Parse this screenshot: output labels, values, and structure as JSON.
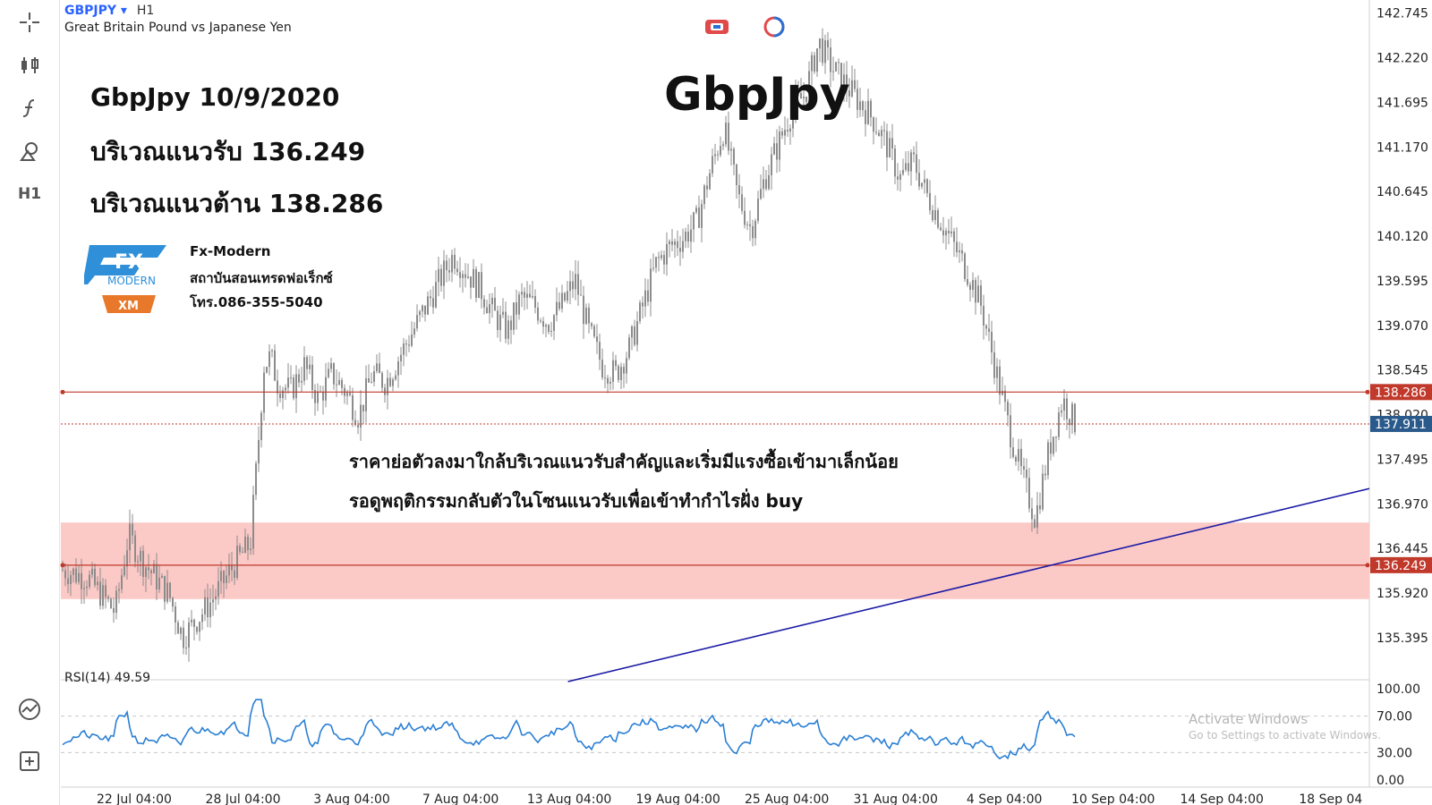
{
  "header": {
    "symbol": "GBPJPY",
    "symbol_caret": "▾",
    "timeframe": "H1",
    "description": "Great Britain Pound vs Japanese Yen"
  },
  "toolbar": {
    "items": [
      "crosshair-icon",
      "candles-icon",
      "function-icon",
      "shapes-icon",
      "H1"
    ],
    "bottom": [
      "indicator-icon",
      "add-icon"
    ]
  },
  "overlay": {
    "big_title": "GbpJpy",
    "line1": "GbpJpy 10/9/2020",
    "line2": "บริเวณแนวรับ 136.249",
    "line3": "บริเวณแนวต้าน 138.286",
    "brand_name": "Fx-Modern",
    "brand_thai": "สถาบันสอนเทรดฟอเร็กซ์",
    "brand_phone": "โทร.086-355-5040",
    "logo_text": "FX",
    "logo_sub": "MODERN",
    "logo_partner": "XM",
    "note1": "ราคาย่อตัวลงมาใกล้บริเวณแนวรับสำคัญและเริ่มมีแรงซื้อเข้ามาเล็กน้อย",
    "note2": "รอดูพฤติกรรมกลับตัวในโซนแนวรับเพื่อเข้าทำกำไรฝั่ง buy"
  },
  "rsi": {
    "label": "RSI(14) 49.59",
    "levels": [
      "100.00",
      "70.00",
      "30.00",
      "0.00"
    ]
  },
  "watermark": {
    "line1": "Activate Windows",
    "line2": "Go to Settings to activate Windows."
  },
  "colors": {
    "candle": "#8c8c8c",
    "resistance": "#c0392b",
    "support": "#c0392b",
    "zone": "#fbc9c6",
    "trend": "#1a1aa6",
    "rsi": "#2a7fd4",
    "current": "#2a5a8c"
  },
  "chart_data": {
    "type": "candlestick",
    "symbol": "GBPJPY",
    "timeframe": "H1",
    "y_ticks": [
      "142.745",
      "142.220",
      "141.695",
      "141.170",
      "140.645",
      "140.120",
      "139.595",
      "139.070",
      "138.545",
      "138.020",
      "137.495",
      "136.970",
      "136.445",
      "135.920",
      "135.395"
    ],
    "ylim": [
      134.9,
      142.9
    ],
    "x_ticks": [
      "22 Jul 04:00",
      "28 Jul 04:00",
      "3 Aug 04:00",
      "7 Aug 04:00",
      "13 Aug 04:00",
      "19 Aug 04:00",
      "25 Aug 04:00",
      "31 Aug 04:00",
      "4 Sep 04:00",
      "10 Sep 04:00",
      "14 Sep 04:00",
      "18 Sep 04"
    ],
    "resistance": 138.286,
    "support": 136.249,
    "current_price": 137.911,
    "support_zone": [
      135.85,
      136.75
    ],
    "trendline": [
      {
        "x": "7 Aug 04:00",
        "y": 134.9
      },
      {
        "x": "18 Sep 04",
        "y": 137.15
      }
    ],
    "price_path": [
      [
        0,
        136.2
      ],
      [
        2,
        136.1
      ],
      [
        4,
        135.7
      ],
      [
        5,
        136.6
      ],
      [
        6,
        136.3
      ],
      [
        8,
        135.9
      ],
      [
        9,
        135.4
      ],
      [
        10,
        135.6
      ],
      [
        11,
        135.8
      ],
      [
        13,
        136.3
      ],
      [
        14,
        136.5
      ],
      [
        14.5,
        137.5
      ],
      [
        15,
        138.6
      ],
      [
        15.5,
        138.7
      ],
      [
        16,
        138.4
      ],
      [
        17,
        138.3
      ],
      [
        18,
        138.6
      ],
      [
        19,
        138.2
      ],
      [
        20,
        138.5
      ],
      [
        21,
        138.3
      ],
      [
        22,
        138.0
      ],
      [
        23,
        138.5
      ],
      [
        24,
        138.4
      ],
      [
        25,
        138.7
      ],
      [
        26,
        139.0
      ],
      [
        27,
        139.3
      ],
      [
        28,
        139.6
      ],
      [
        29,
        139.9
      ],
      [
        30,
        139.7
      ],
      [
        31,
        139.5
      ],
      [
        32,
        139.2
      ],
      [
        33,
        139.0
      ],
      [
        34,
        139.4
      ],
      [
        35,
        139.3
      ],
      [
        36,
        139.1
      ],
      [
        37,
        139.3
      ],
      [
        38,
        139.6
      ],
      [
        39,
        139.0
      ],
      [
        40,
        138.6
      ],
      [
        41,
        138.5
      ],
      [
        42,
        138.8
      ],
      [
        43,
        139.3
      ],
      [
        44,
        139.8
      ],
      [
        45,
        140.0
      ],
      [
        46,
        140.1
      ],
      [
        47,
        140.3
      ],
      [
        48,
        140.9
      ],
      [
        49,
        141.4
      ],
      [
        50,
        140.6
      ],
      [
        51,
        140.2
      ],
      [
        52,
        140.8
      ],
      [
        53,
        141.2
      ],
      [
        54,
        141.6
      ],
      [
        55,
        141.8
      ],
      [
        56,
        142.4
      ],
      [
        57,
        142.1
      ],
      [
        58,
        141.9
      ],
      [
        59,
        141.7
      ],
      [
        60,
        141.5
      ],
      [
        61,
        141.2
      ],
      [
        62,
        140.8
      ],
      [
        63,
        141.0
      ],
      [
        64,
        140.6
      ],
      [
        65,
        140.3
      ],
      [
        66,
        140.0
      ],
      [
        67,
        139.7
      ],
      [
        68,
        139.3
      ],
      [
        69,
        138.6
      ],
      [
        70,
        137.9
      ],
      [
        71,
        137.3
      ],
      [
        72,
        136.8
      ],
      [
        73,
        137.6
      ],
      [
        74,
        138.2
      ],
      [
        75,
        137.9
      ]
    ],
    "rsi_period": 14,
    "rsi_last": 49.59
  }
}
